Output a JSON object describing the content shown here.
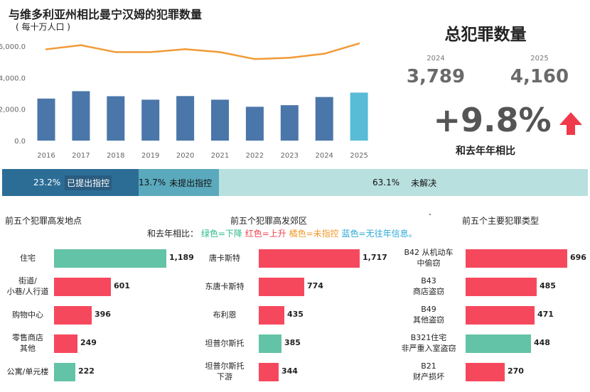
{
  "header": {
    "title": "与维多利亚州相比曼宁汉姆的犯罪数量",
    "subtitle": "( 每十万人口 )"
  },
  "chart_data": {
    "type": "bar",
    "categories": [
      "2016",
      "2017",
      "2018",
      "2019",
      "2020",
      "2021",
      "2022",
      "2023",
      "2024",
      "2025"
    ],
    "series": [
      {
        "values": [
          2670,
          3140,
          2820,
          2600,
          2830,
          2600,
          2150,
          2250,
          2770,
          3050
        ]
      },
      {
        "values": [
          5800,
          6060,
          5620,
          5620,
          5810,
          5620,
          5180,
          5260,
          5520,
          6170
        ]
      }
    ],
    "ylim": [
      0,
      6500
    ],
    "yticks": [
      "0.0",
      "2,000.0",
      "4,000.0",
      "6,000.0"
    ],
    "ytick_values": [
      0,
      2000,
      4000,
      6000
    ],
    "colors": {
      "bar": "#4b76a9",
      "highlight": "#58bcd6",
      "line": "#f09a35"
    }
  },
  "kpi": {
    "title": "总犯罪数量",
    "year_a": "2024",
    "value_a": "3,789",
    "year_b": "2025",
    "value_b": "4,160",
    "change": "+9.8%",
    "change_label": "和去年年相比",
    "arrow_icon": "up-arrow-icon",
    "arrow_color": "#f0394a"
  },
  "status": {
    "charged_pct": "23.2%",
    "charged_label": "已提出指控",
    "uncharged_pct": "13.7%",
    "uncharged_label": "未提出指控",
    "unsolved_pct": "63.1%",
    "unsolved_label": "未解决",
    "values": [
      23.2,
      13.7,
      63.1
    ]
  },
  "legend": {
    "prefix": "和去年相比：",
    "green": "绿色=下降",
    "red": "红色=上升",
    "orange": "橘色=未指控",
    "blue": "蓝色=无往年信息。"
  },
  "locations": {
    "title": "前五个犯罪高发地点",
    "max": 1189,
    "items": [
      {
        "label": "住宅",
        "value": "1,189",
        "num": 1189,
        "color": "green"
      },
      {
        "label": "街道/\n小巷/人行道",
        "value": "601",
        "num": 601,
        "color": "red"
      },
      {
        "label": "购物中心",
        "value": "396",
        "num": 396,
        "color": "red"
      },
      {
        "label": "零售商店\n其他",
        "value": "249",
        "num": 249,
        "color": "red"
      },
      {
        "label": "公寓/单元楼",
        "value": "222",
        "num": 222,
        "color": "green"
      }
    ]
  },
  "suburbs": {
    "title": "前五个犯罪高发郊区",
    "max": 1717,
    "items": [
      {
        "label": "唐卡斯特",
        "value": "1,717",
        "num": 1717,
        "color": "red"
      },
      {
        "label": "东唐卡斯特",
        "value": "774",
        "num": 774,
        "color": "red"
      },
      {
        "label": "布利恩",
        "value": "435",
        "num": 435,
        "color": "red"
      },
      {
        "label": "坦普尔斯托",
        "value": "385",
        "num": 385,
        "color": "green"
      },
      {
        "label": "坦普尔斯托\n下游",
        "value": "344",
        "num": 344,
        "color": "red"
      }
    ]
  },
  "types": {
    "title": "前五个主要犯罪类型",
    "max": 696,
    "items": [
      {
        "label": "B42 从机动车\n中偷窃",
        "value": "696",
        "num": 696,
        "color": "red"
      },
      {
        "label": "B43\n商店盗窃",
        "value": "485",
        "num": 485,
        "color": "red"
      },
      {
        "label": "B49\n其他盗窃",
        "value": "471",
        "num": 471,
        "color": "red"
      },
      {
        "label": "B321住宅\n非严重入室盗窃",
        "value": "448",
        "num": 448,
        "color": "green"
      },
      {
        "label": "B21\n财产损坏",
        "value": "270",
        "num": 270,
        "color": "red"
      }
    ]
  }
}
